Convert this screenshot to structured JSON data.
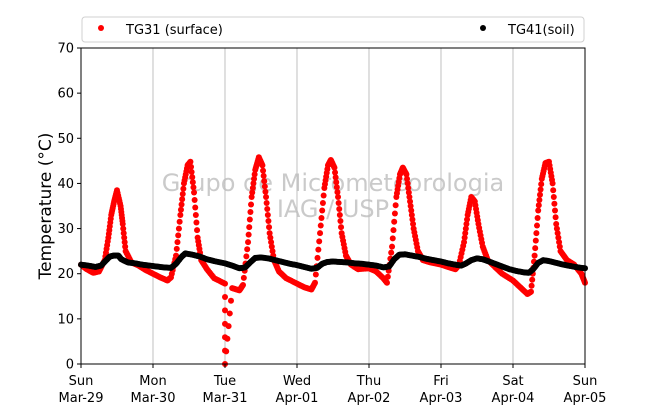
{
  "chart_data": {
    "type": "scatter",
    "ylabel": "Temperature (°C)",
    "ylim": [
      0,
      70
    ],
    "yticks": [
      0,
      10,
      20,
      30,
      40,
      50,
      60,
      70
    ],
    "xlim_days": [
      0,
      7
    ],
    "xticks": [
      {
        "day": 0,
        "line1": "Sun",
        "line2": "Mar-29"
      },
      {
        "day": 1,
        "line1": "Mon",
        "line2": "Mar-30"
      },
      {
        "day": 2,
        "line1": "Tue",
        "line2": "Mar-31"
      },
      {
        "day": 3,
        "line1": "Wed",
        "line2": "Apr-01"
      },
      {
        "day": 4,
        "line1": "Thu",
        "line2": "Apr-02"
      },
      {
        "day": 5,
        "line1": "Fri",
        "line2": "Apr-03"
      },
      {
        "day": 6,
        "line1": "Sat",
        "line2": "Apr-04"
      },
      {
        "day": 7,
        "line1": "Sun",
        "line2": "Apr-05"
      }
    ],
    "grid": "vertical",
    "legend_position": "top, outside",
    "watermark": [
      "Grupo de Micrometeorologia",
      "IAG / USP"
    ],
    "series": [
      {
        "name": "TG31 (surface)",
        "color": "#ff0000",
        "points": [
          [
            0.0,
            22.0
          ],
          [
            0.08,
            21.0
          ],
          [
            0.17,
            20.2
          ],
          [
            0.25,
            20.5
          ],
          [
            0.33,
            23.0
          ],
          [
            0.38,
            28.0
          ],
          [
            0.42,
            33.0
          ],
          [
            0.46,
            36.0
          ],
          [
            0.5,
            38.5
          ],
          [
            0.55,
            35.0
          ],
          [
            0.58,
            31.0
          ],
          [
            0.62,
            25.0
          ],
          [
            0.7,
            22.5
          ],
          [
            0.8,
            21.8
          ],
          [
            0.9,
            20.8
          ],
          [
            1.0,
            20.0
          ],
          [
            1.1,
            19.2
          ],
          [
            1.2,
            18.5
          ],
          [
            1.25,
            19.2
          ],
          [
            1.32,
            24.0
          ],
          [
            1.38,
            33.0
          ],
          [
            1.43,
            40.0
          ],
          [
            1.48,
            44.0
          ],
          [
            1.52,
            44.8
          ],
          [
            1.57,
            38.0
          ],
          [
            1.62,
            28.0
          ],
          [
            1.67,
            23.0
          ],
          [
            1.75,
            21.0
          ],
          [
            1.85,
            19.0
          ],
          [
            2.0,
            17.8
          ],
          [
            2.1,
            16.8
          ],
          [
            2.2,
            16.3
          ],
          [
            2.25,
            17.5
          ],
          [
            2.32,
            27.0
          ],
          [
            2.37,
            37.0
          ],
          [
            2.42,
            43.0
          ],
          [
            2.47,
            45.8
          ],
          [
            2.52,
            44.0
          ],
          [
            2.57,
            37.0
          ],
          [
            2.62,
            29.0
          ],
          [
            2.68,
            23.0
          ],
          [
            2.75,
            20.5
          ],
          [
            2.85,
            19.0
          ],
          [
            3.0,
            17.8
          ],
          [
            3.1,
            17.0
          ],
          [
            3.2,
            16.5
          ],
          [
            3.25,
            18.0
          ],
          [
            3.32,
            29.0
          ],
          [
            3.38,
            39.0
          ],
          [
            3.43,
            44.0
          ],
          [
            3.47,
            45.2
          ],
          [
            3.52,
            43.5
          ],
          [
            3.57,
            37.0
          ],
          [
            3.62,
            29.0
          ],
          [
            3.68,
            24.0
          ],
          [
            3.75,
            22.0
          ],
          [
            3.85,
            21.0
          ],
          [
            4.0,
            21.2
          ],
          [
            4.1,
            20.5
          ],
          [
            4.2,
            19.0
          ],
          [
            4.25,
            18.0
          ],
          [
            4.32,
            26.0
          ],
          [
            4.38,
            37.0
          ],
          [
            4.43,
            42.0
          ],
          [
            4.47,
            43.5
          ],
          [
            4.52,
            42.0
          ],
          [
            4.57,
            36.0
          ],
          [
            4.62,
            30.0
          ],
          [
            4.68,
            25.0
          ],
          [
            4.75,
            23.0
          ],
          [
            4.85,
            22.5
          ],
          [
            5.0,
            22.0
          ],
          [
            5.1,
            21.5
          ],
          [
            5.2,
            21.0
          ],
          [
            5.25,
            22.0
          ],
          [
            5.32,
            27.0
          ],
          [
            5.37,
            33.0
          ],
          [
            5.42,
            37.0
          ],
          [
            5.47,
            36.0
          ],
          [
            5.52,
            31.0
          ],
          [
            5.58,
            26.0
          ],
          [
            5.65,
            23.0
          ],
          [
            5.75,
            21.5
          ],
          [
            5.85,
            20.0
          ],
          [
            6.0,
            18.5
          ],
          [
            6.1,
            17.0
          ],
          [
            6.2,
            15.5
          ],
          [
            6.25,
            16.0
          ],
          [
            6.3,
            24.0
          ],
          [
            6.35,
            34.0
          ],
          [
            6.4,
            41.0
          ],
          [
            6.45,
            44.5
          ],
          [
            6.5,
            44.8
          ],
          [
            6.55,
            40.0
          ],
          [
            6.6,
            31.0
          ],
          [
            6.66,
            25.0
          ],
          [
            6.75,
            23.0
          ],
          [
            6.85,
            22.0
          ],
          [
            6.95,
            20.0
          ],
          [
            7.0,
            18.0
          ],
          [
            2.0,
            0.0
          ]
        ]
      },
      {
        "name": "TG41(soil)",
        "color": "#000000",
        "points": [
          [
            0.0,
            22.0
          ],
          [
            0.1,
            21.8
          ],
          [
            0.2,
            21.5
          ],
          [
            0.28,
            21.8
          ],
          [
            0.35,
            23.0
          ],
          [
            0.4,
            23.8
          ],
          [
            0.45,
            24.0
          ],
          [
            0.52,
            24.0
          ],
          [
            0.56,
            23.2
          ],
          [
            0.65,
            22.5
          ],
          [
            0.75,
            22.3
          ],
          [
            0.85,
            22.0
          ],
          [
            0.95,
            21.8
          ],
          [
            1.05,
            21.6
          ],
          [
            1.15,
            21.4
          ],
          [
            1.25,
            21.3
          ],
          [
            1.32,
            22.2
          ],
          [
            1.4,
            23.8
          ],
          [
            1.45,
            24.5
          ],
          [
            1.55,
            24.2
          ],
          [
            1.65,
            23.8
          ],
          [
            1.75,
            23.2
          ],
          [
            1.85,
            22.8
          ],
          [
            2.0,
            22.3
          ],
          [
            2.1,
            21.8
          ],
          [
            2.2,
            21.2
          ],
          [
            2.28,
            21.4
          ],
          [
            2.35,
            22.5
          ],
          [
            2.42,
            23.5
          ],
          [
            2.5,
            23.6
          ],
          [
            2.6,
            23.4
          ],
          [
            2.7,
            23.0
          ],
          [
            2.8,
            22.6
          ],
          [
            2.9,
            22.2
          ],
          [
            3.0,
            21.9
          ],
          [
            3.1,
            21.5
          ],
          [
            3.2,
            21.1
          ],
          [
            3.28,
            21.3
          ],
          [
            3.35,
            22.2
          ],
          [
            3.42,
            22.6
          ],
          [
            3.5,
            22.7
          ],
          [
            3.6,
            22.6
          ],
          [
            3.7,
            22.5
          ],
          [
            3.8,
            22.3
          ],
          [
            3.9,
            22.2
          ],
          [
            4.0,
            22.0
          ],
          [
            4.1,
            21.8
          ],
          [
            4.2,
            21.4
          ],
          [
            4.28,
            21.6
          ],
          [
            4.35,
            23.2
          ],
          [
            4.42,
            24.2
          ],
          [
            4.5,
            24.3
          ],
          [
            4.6,
            24.0
          ],
          [
            4.7,
            23.7
          ],
          [
            4.8,
            23.3
          ],
          [
            4.9,
            23.0
          ],
          [
            5.0,
            22.7
          ],
          [
            5.1,
            22.3
          ],
          [
            5.2,
            22.0
          ],
          [
            5.28,
            21.8
          ],
          [
            5.35,
            22.3
          ],
          [
            5.42,
            23.0
          ],
          [
            5.5,
            23.4
          ],
          [
            5.58,
            23.2
          ],
          [
            5.65,
            22.8
          ],
          [
            5.75,
            22.2
          ],
          [
            5.85,
            21.6
          ],
          [
            5.95,
            21.0
          ],
          [
            6.05,
            20.6
          ],
          [
            6.15,
            20.3
          ],
          [
            6.22,
            20.2
          ],
          [
            6.28,
            21.0
          ],
          [
            6.35,
            22.4
          ],
          [
            6.42,
            23.0
          ],
          [
            6.5,
            22.8
          ],
          [
            6.6,
            22.4
          ],
          [
            6.7,
            22.0
          ],
          [
            6.8,
            21.7
          ],
          [
            6.9,
            21.4
          ],
          [
            7.0,
            21.2
          ]
        ]
      }
    ]
  }
}
